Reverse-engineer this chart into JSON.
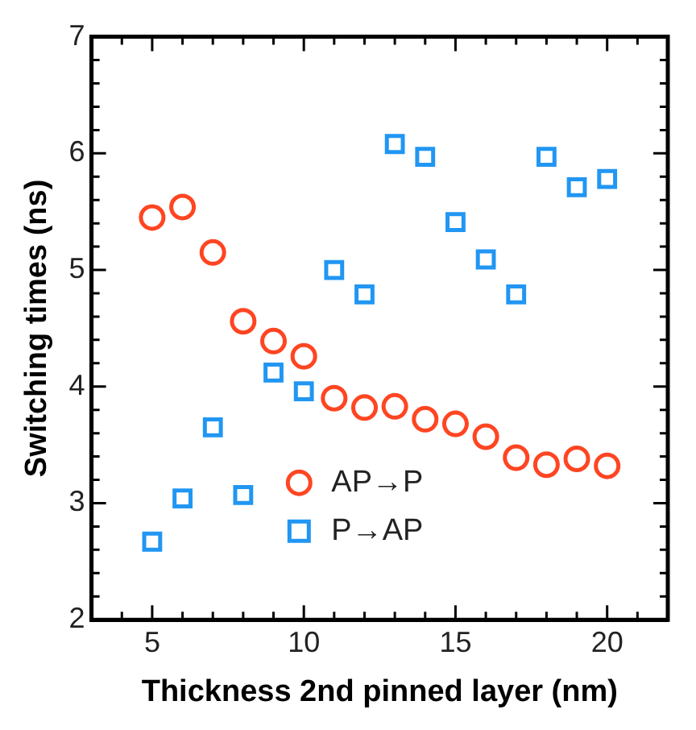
{
  "chart_data": {
    "type": "scatter",
    "xlabel": "Thickness 2nd pinned layer (nm)",
    "ylabel": "Switching times (ns)",
    "xlim": [
      3,
      22
    ],
    "ylim": [
      2,
      7
    ],
    "xticks": [
      {
        "value": 3,
        "label": null
      },
      {
        "value": 4,
        "label": null
      },
      5,
      {
        "value": 6,
        "label": null
      },
      {
        "value": 7,
        "label": null
      },
      {
        "value": 8,
        "label": null
      },
      {
        "value": 9,
        "label": null
      },
      10,
      {
        "value": 11,
        "label": null
      },
      {
        "value": 12,
        "label": null
      },
      {
        "value": 13,
        "label": null
      },
      {
        "value": 14,
        "label": null
      },
      15,
      {
        "value": 16,
        "label": null
      },
      {
        "value": 17,
        "label": null
      },
      {
        "value": 18,
        "label": null
      },
      {
        "value": 19,
        "label": null
      },
      20,
      {
        "value": 21,
        "label": null
      }
    ],
    "yticks": [
      2,
      {
        "value": 2.2,
        "label": null
      },
      {
        "value": 2.4,
        "label": null
      },
      {
        "value": 2.6,
        "label": null
      },
      {
        "value": 2.8,
        "label": null
      },
      3,
      {
        "value": 3.2,
        "label": null
      },
      {
        "value": 3.4,
        "label": null
      },
      {
        "value": 3.6,
        "label": null
      },
      {
        "value": 3.8,
        "label": null
      },
      4,
      {
        "value": 4.2,
        "label": null
      },
      {
        "value": 4.4,
        "label": null
      },
      {
        "value": 4.6,
        "label": null
      },
      {
        "value": 4.8,
        "label": null
      },
      5,
      {
        "value": 5.2,
        "label": null
      },
      {
        "value": 5.4,
        "label": null
      },
      {
        "value": 5.6,
        "label": null
      },
      {
        "value": 5.8,
        "label": null
      },
      6,
      {
        "value": 6.2,
        "label": null
      },
      {
        "value": 6.4,
        "label": null
      },
      {
        "value": 6.6,
        "label": null
      },
      {
        "value": 6.8,
        "label": null
      },
      7
    ],
    "grid": false,
    "legend": "bottom",
    "x": [
      5,
      6,
      7,
      8,
      9,
      10,
      11,
      12,
      13,
      14,
      15,
      16,
      17,
      18,
      19,
      20
    ],
    "series": [
      {
        "name": "AP→P",
        "color": "#ff4522",
        "marker": "circle",
        "values": [
          5.45,
          5.54,
          5.15,
          4.56,
          4.39,
          4.26,
          3.9,
          3.82,
          3.83,
          3.72,
          3.68,
          3.57,
          3.39,
          3.33,
          3.38,
          3.32
        ]
      },
      {
        "name": "P→AP",
        "color": "#2196f3",
        "marker": "square",
        "values": [
          2.67,
          3.04,
          3.65,
          3.07,
          4.12,
          3.96,
          5.0,
          4.79,
          6.08,
          5.97,
          5.41,
          5.09,
          4.79,
          5.97,
          5.71,
          5.78
        ]
      }
    ]
  }
}
